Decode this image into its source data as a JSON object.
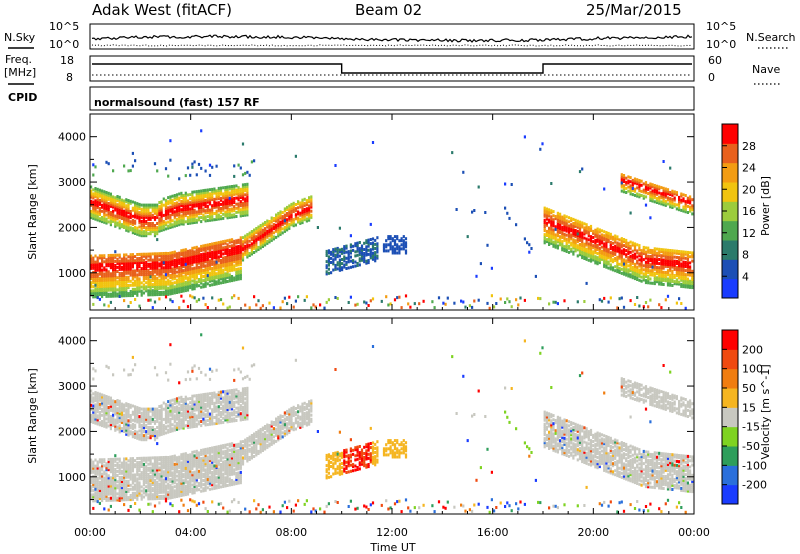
{
  "header": {
    "station": "Adak West (fitACF)",
    "beam": "Beam 02",
    "date": "25/Mar/2015"
  },
  "top_panels": {
    "nsky_label": "N.Sky",
    "nsearch_label": "N.Search",
    "nsky_ticks": [
      "10^5",
      "10^0"
    ],
    "nsearch_ticks": [
      "10^5",
      "10^0"
    ],
    "freq_label": "Freq.",
    "freq_unit": "[MHz]",
    "freq_ticks": [
      "18",
      "8"
    ],
    "nave_label": "Nave",
    "nave_ticks": [
      "60",
      "0"
    ],
    "cpid_label": "CPID",
    "cpid_value": "normalsound (fast) 157 RF"
  },
  "chart_data": {
    "type": "heatmap",
    "xlabel": "Time UT",
    "x_ticks": [
      "00:00",
      "04:00",
      "08:00",
      "12:00",
      "16:00",
      "20:00",
      "00:00"
    ],
    "x_range_hours": [
      0,
      24
    ],
    "ylabel": "Slant Range [km]",
    "y_ticks": [
      "1000",
      "2000",
      "3000",
      "4000"
    ],
    "y_range_km": [
      180,
      4500
    ],
    "panels": [
      {
        "name": "power",
        "colorbar_label": "Power [dB]",
        "colorbar_ticks": [
          "4",
          "8",
          "12",
          "16",
          "20",
          "24",
          "28"
        ],
        "colorbar_range": [
          0,
          32
        ],
        "colors": [
          "#1a3cff",
          "#1c4fb5",
          "#2b7a6b",
          "#4fa84f",
          "#9ccc3c",
          "#f1c40f",
          "#f39c12",
          "#e8601c",
          "#ff0000"
        ]
      },
      {
        "name": "velocity",
        "colorbar_label": "Velocity [m s^-1]",
        "colorbar_ticks": [
          "200",
          "100",
          "50",
          "15",
          "-15",
          "-50",
          "-100",
          "-200"
        ],
        "colorbar_range": [
          -250,
          250
        ],
        "colors": [
          "#1a3cff",
          "#2a6fdb",
          "#2e9e5b",
          "#7ed321",
          "#c8c8c0",
          "#f5b520",
          "#f07d10",
          "#f04a10",
          "#ff0000"
        ]
      }
    ]
  }
}
